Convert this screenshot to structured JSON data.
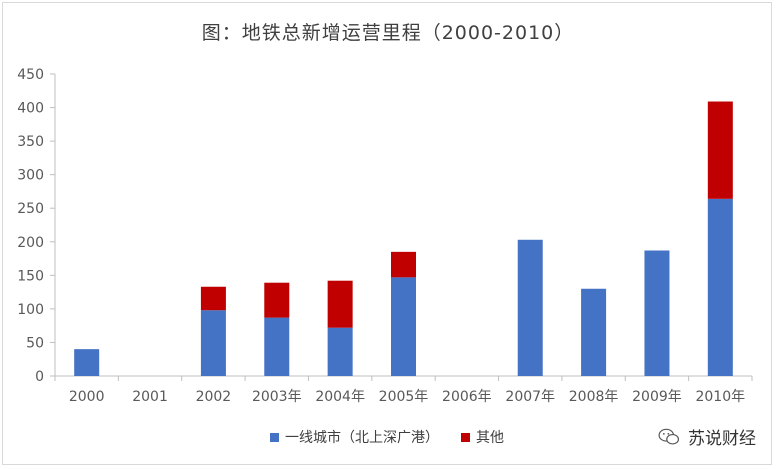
{
  "chart_data": {
    "type": "bar",
    "stacked": true,
    "title": "图：地铁总新增运营里程（2000-2010）",
    "categories": [
      "2000",
      "2001",
      "2002",
      "2003年",
      "2004年",
      "2005年",
      "2006年",
      "2007年",
      "2008年",
      "2009年",
      "2010年"
    ],
    "series": [
      {
        "name": "一线城市（北上深广港）",
        "color": "#4472c4",
        "values": [
          40,
          0,
          98,
          87,
          72,
          147,
          0,
          203,
          130,
          187,
          264
        ]
      },
      {
        "name": "其他",
        "color": "#c00000",
        "values": [
          0,
          0,
          35,
          52,
          70,
          38,
          0,
          0,
          0,
          0,
          145
        ]
      }
    ],
    "yticks": [
      0,
      50,
      100,
      150,
      200,
      250,
      300,
      350,
      400,
      450
    ],
    "ylim": [
      0,
      450
    ],
    "grid": false,
    "legend_position": "bottom"
  },
  "watermark": {
    "text": "苏说财经",
    "icon": "wechat-icon"
  }
}
